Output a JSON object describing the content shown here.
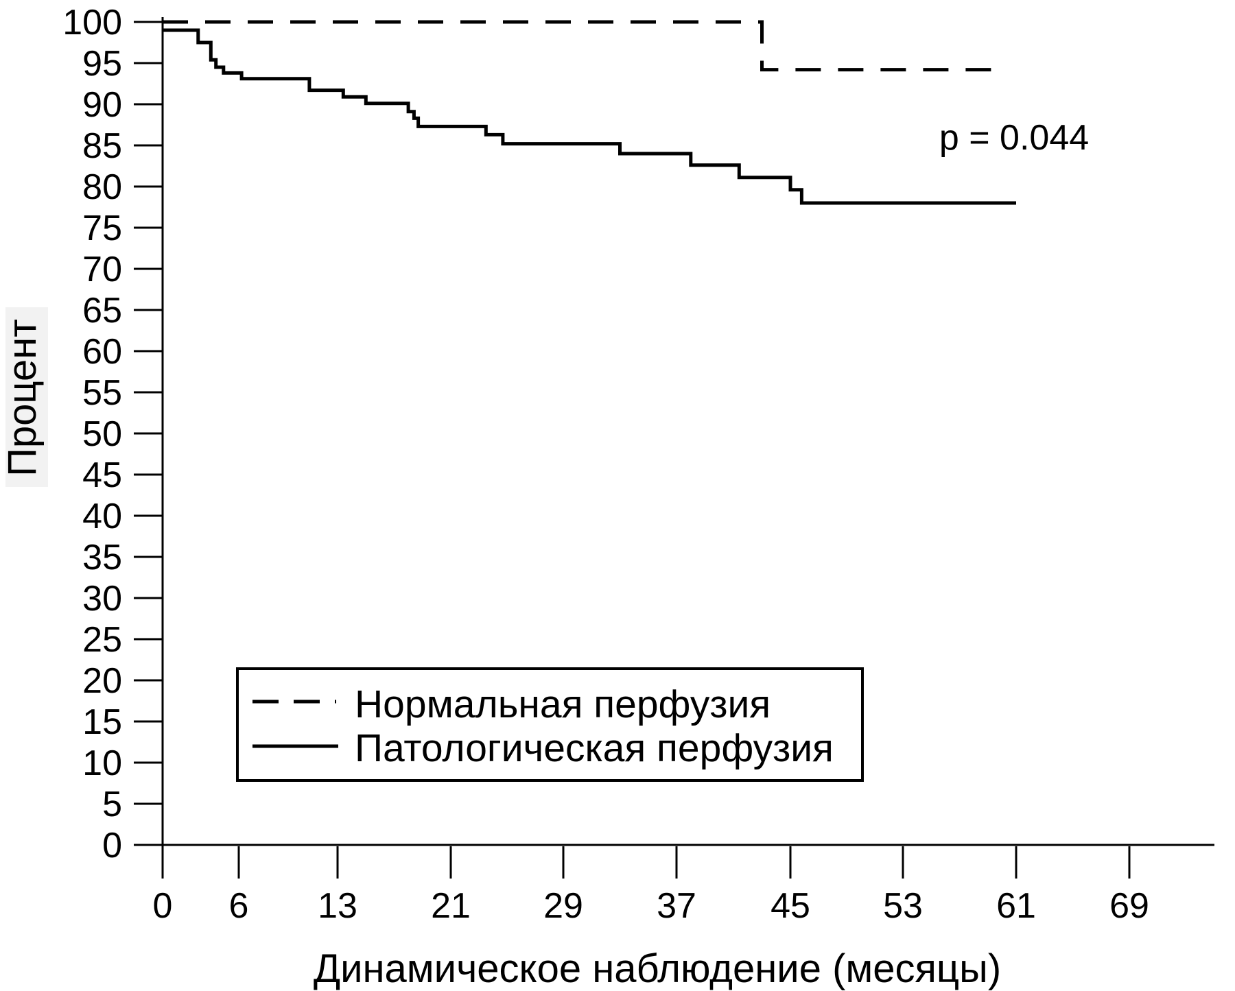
{
  "figure": {
    "background": "#ffffff",
    "line_color": "#000000",
    "ylabel_bg": "#f2f2f2"
  },
  "chart_data": {
    "type": "line",
    "subtype": "kaplan-meier-step",
    "title": "",
    "xlabel": "Динамическое наблюдение (месяцы)",
    "ylabel": "Процент",
    "annotation": "p = 0.044",
    "xticks": [
      0,
      6,
      13,
      21,
      29,
      37,
      45,
      53,
      61,
      69
    ],
    "yticks": [
      0,
      5,
      10,
      15,
      20,
      25,
      30,
      35,
      40,
      45,
      50,
      55,
      60,
      65,
      70,
      75,
      80,
      85,
      90,
      95,
      100
    ],
    "xlim": [
      0,
      75
    ],
    "ylim": [
      0,
      100
    ],
    "grid": false,
    "legend_position": "lower-left",
    "series": [
      {
        "name": "Нормальная перфузия",
        "line_style": "dashed",
        "color": "#000000",
        "points": [
          [
            0,
            100
          ],
          [
            43,
            94.2
          ],
          [
            60,
            94.2
          ]
        ]
      },
      {
        "name": "Патологическая перфузия",
        "line_style": "solid",
        "color": "#000000",
        "points": [
          [
            0,
            99
          ],
          [
            2.8,
            97.5
          ],
          [
            3.8,
            95.4
          ],
          [
            4.2,
            94.5
          ],
          [
            4.8,
            93.8
          ],
          [
            6.2,
            93.1
          ],
          [
            11,
            91.7
          ],
          [
            13.4,
            90.9
          ],
          [
            15,
            90.1
          ],
          [
            18,
            89.1
          ],
          [
            18.4,
            88.3
          ],
          [
            18.7,
            87.3
          ],
          [
            23.5,
            86.3
          ],
          [
            24.7,
            85.2
          ],
          [
            33,
            84
          ],
          [
            38,
            82.6
          ],
          [
            41.4,
            81.1
          ],
          [
            45,
            79.6
          ],
          [
            45.8,
            78
          ],
          [
            61,
            78
          ]
        ]
      }
    ]
  }
}
